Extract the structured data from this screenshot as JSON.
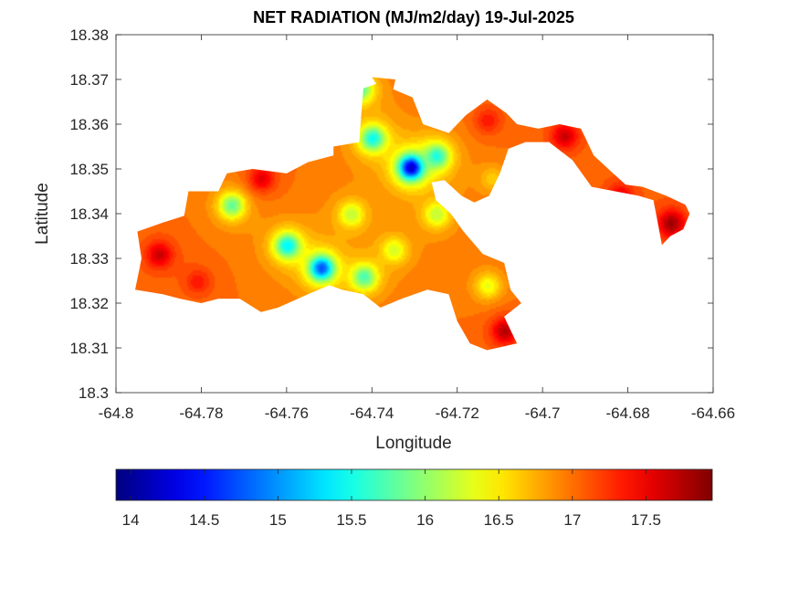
{
  "chart_data": {
    "type": "heatmap",
    "title": "NET RADIATION (MJ/m2/day) 19-Jul-2025",
    "xlabel": "Longitude",
    "ylabel": "Latitude",
    "xlim": [
      -64.8,
      -64.66
    ],
    "ylim": [
      18.3,
      18.38
    ],
    "xticks": [
      -64.8,
      -64.78,
      -64.76,
      -64.74,
      -64.72,
      -64.7,
      -64.68,
      -64.66
    ],
    "xtick_labels": [
      "-64.8",
      "-64.78",
      "-64.76",
      "-64.74",
      "-64.72",
      "-64.7",
      "-64.68",
      "-64.66"
    ],
    "yticks": [
      18.3,
      18.31,
      18.32,
      18.33,
      18.34,
      18.35,
      18.36,
      18.37,
      18.38
    ],
    "ytick_labels": [
      "18.3",
      "18.31",
      "18.32",
      "18.33",
      "18.34",
      "18.35",
      "18.36",
      "18.37",
      "18.38"
    ],
    "colorbar": {
      "colormap": "jet",
      "range": [
        13.9,
        17.95
      ],
      "ticks": [
        14,
        14.5,
        15,
        15.5,
        16,
        16.5,
        17,
        17.5
      ],
      "tick_labels": [
        "14",
        "14.5",
        "15",
        "15.5",
        "16",
        "16.5",
        "17",
        "17.5"
      ]
    },
    "background_value": 17.0,
    "features": [
      {
        "lon": -64.731,
        "lat": 18.3505,
        "value": 13.9
      },
      {
        "lon": -64.74,
        "lat": 18.357,
        "value": 15.3
      },
      {
        "lon": -64.743,
        "lat": 18.368,
        "value": 15.6
      },
      {
        "lon": -64.725,
        "lat": 18.353,
        "value": 15.4
      },
      {
        "lon": -64.752,
        "lat": 18.328,
        "value": 14.5
      },
      {
        "lon": -64.76,
        "lat": 18.333,
        "value": 15.2
      },
      {
        "lon": -64.742,
        "lat": 18.326,
        "value": 15.6
      },
      {
        "lon": -64.773,
        "lat": 18.342,
        "value": 15.7
      },
      {
        "lon": -64.745,
        "lat": 18.34,
        "value": 16.1
      },
      {
        "lon": -64.735,
        "lat": 18.332,
        "value": 16.2
      },
      {
        "lon": -64.725,
        "lat": 18.34,
        "value": 16.1
      },
      {
        "lon": -64.712,
        "lat": 18.348,
        "value": 16.6
      },
      {
        "lon": -64.713,
        "lat": 18.324,
        "value": 16.3
      },
      {
        "lon": -64.79,
        "lat": 18.331,
        "value": 17.7
      },
      {
        "lon": -64.781,
        "lat": 18.325,
        "value": 17.4
      },
      {
        "lon": -64.766,
        "lat": 18.348,
        "value": 17.6
      },
      {
        "lon": -64.713,
        "lat": 18.361,
        "value": 17.4
      },
      {
        "lon": -64.709,
        "lat": 18.314,
        "value": 17.8
      },
      {
        "lon": -64.67,
        "lat": 18.338,
        "value": 17.9
      },
      {
        "lon": -64.695,
        "lat": 18.3575,
        "value": 17.7
      },
      {
        "lon": -64.682,
        "lat": 18.344,
        "value": 17.6
      }
    ],
    "region_outline": [
      [
        -64.7955,
        18.323
      ],
      [
        -64.794,
        18.33
      ],
      [
        -64.795,
        18.336
      ],
      [
        -64.789,
        18.338
      ],
      [
        -64.784,
        18.3395
      ],
      [
        -64.783,
        18.345
      ],
      [
        -64.776,
        18.345
      ],
      [
        -64.774,
        18.349
      ],
      [
        -64.768,
        18.35
      ],
      [
        -64.76,
        18.349
      ],
      [
        -64.755,
        18.3515
      ],
      [
        -64.749,
        18.353
      ],
      [
        -64.749,
        18.355
      ],
      [
        -64.743,
        18.356
      ],
      [
        -64.742,
        18.368
      ],
      [
        -64.739,
        18.369
      ],
      [
        -64.74,
        18.3705
      ],
      [
        -64.7345,
        18.37
      ],
      [
        -64.735,
        18.3678
      ],
      [
        -64.7305,
        18.366
      ],
      [
        -64.728,
        18.36
      ],
      [
        -64.722,
        18.358
      ],
      [
        -64.718,
        18.362
      ],
      [
        -64.713,
        18.3655
      ],
      [
        -64.7085,
        18.3625
      ],
      [
        -64.706,
        18.36
      ],
      [
        -64.701,
        18.359
      ],
      [
        -64.696,
        18.36
      ],
      [
        -64.691,
        18.359
      ],
      [
        -64.688,
        18.353
      ],
      [
        -64.684,
        18.3495
      ],
      [
        -64.6805,
        18.3465
      ],
      [
        -64.6765,
        18.346
      ],
      [
        -64.671,
        18.344
      ],
      [
        -64.6665,
        18.342
      ],
      [
        -64.6655,
        18.34
      ],
      [
        -64.667,
        18.3365
      ],
      [
        -64.67,
        18.335
      ],
      [
        -64.672,
        18.333
      ],
      [
        -64.673,
        18.338
      ],
      [
        -64.674,
        18.343
      ],
      [
        -64.6775,
        18.344
      ],
      [
        -64.683,
        18.345
      ],
      [
        -64.6885,
        18.346
      ],
      [
        -64.693,
        18.352
      ],
      [
        -64.6985,
        18.356
      ],
      [
        -64.704,
        18.356
      ],
      [
        -64.708,
        18.3545
      ],
      [
        -64.71,
        18.349
      ],
      [
        -64.7125,
        18.344
      ],
      [
        -64.716,
        18.3425
      ],
      [
        -64.719,
        18.344
      ],
      [
        -64.723,
        18.3475
      ],
      [
        -64.726,
        18.347
      ],
      [
        -64.725,
        18.343
      ],
      [
        -64.7215,
        18.34
      ],
      [
        -64.7185,
        18.336
      ],
      [
        -64.714,
        18.331
      ],
      [
        -64.709,
        18.329
      ],
      [
        -64.7075,
        18.323
      ],
      [
        -64.705,
        18.32
      ],
      [
        -64.709,
        18.317
      ],
      [
        -64.706,
        18.311
      ],
      [
        -64.713,
        18.3095
      ],
      [
        -64.717,
        18.311
      ],
      [
        -64.72,
        18.316
      ],
      [
        -64.722,
        18.322
      ],
      [
        -64.727,
        18.323
      ],
      [
        -64.733,
        18.321
      ],
      [
        -64.738,
        18.319
      ],
      [
        -64.742,
        18.322
      ],
      [
        -64.747,
        18.323
      ],
      [
        -64.75,
        18.324
      ],
      [
        -64.755,
        18.322
      ],
      [
        -64.762,
        18.319
      ],
      [
        -64.766,
        18.318
      ],
      [
        -64.771,
        18.321
      ],
      [
        -64.776,
        18.321
      ],
      [
        -64.78,
        18.32
      ],
      [
        -64.785,
        18.321
      ],
      [
        -64.789,
        18.322
      ],
      [
        -64.7955,
        18.323
      ]
    ]
  }
}
